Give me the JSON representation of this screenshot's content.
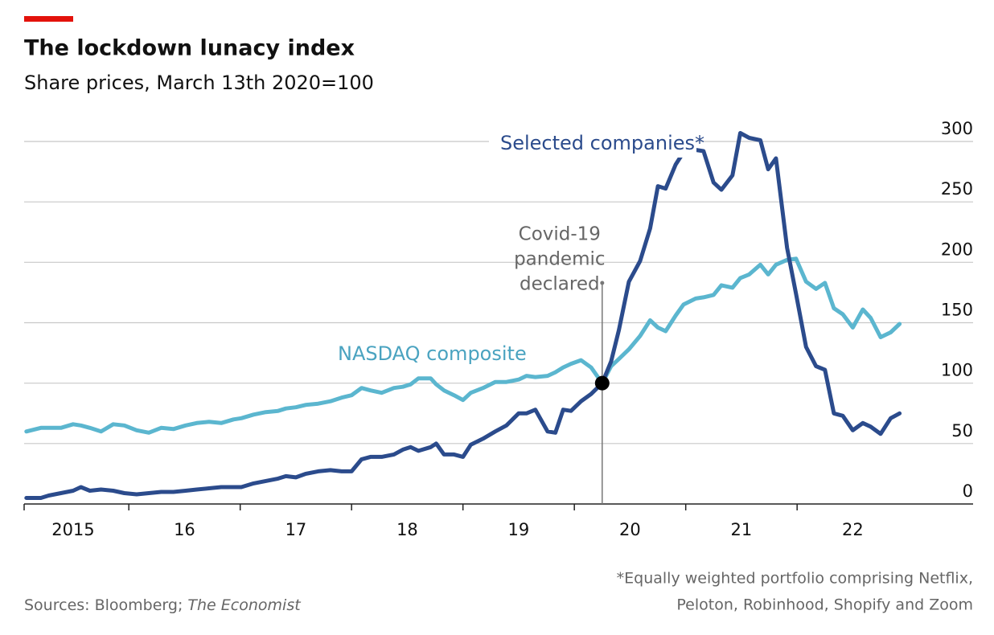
{
  "chart_data": {
    "type": "line",
    "title": "The lockdown lunacy index",
    "subtitle": "Share prices, March 13th 2020=100",
    "x": [
      2015.08,
      2015.21,
      2015.28,
      2015.39,
      2015.5,
      2015.57,
      2015.65,
      2015.75,
      2015.86,
      2015.96,
      2016.07,
      2016.18,
      2016.29,
      2016.4,
      2016.51,
      2016.61,
      2016.72,
      2016.83,
      2016.94,
      2017.01,
      2017.12,
      2017.23,
      2017.34,
      2017.41,
      2017.5,
      2017.59,
      2017.7,
      2017.81,
      2017.91,
      2018.0,
      2018.09,
      2018.17,
      2018.27,
      2018.38,
      2018.46,
      2018.53,
      2018.6,
      2018.71,
      2018.76,
      2018.83,
      2018.92,
      2019.0,
      2019.07,
      2019.18,
      2019.29,
      2019.39,
      2019.5,
      2019.57,
      2019.65,
      2019.76,
      2019.83,
      2019.9,
      2019.97,
      2020.06,
      2020.15,
      2020.25,
      2020.33,
      2020.4,
      2020.49,
      2020.59,
      2020.68,
      2020.75,
      2020.82,
      2020.91,
      2020.98,
      2021.09,
      2021.16,
      2021.25,
      2021.32,
      2021.42,
      2021.49,
      2021.57,
      2021.67,
      2021.74,
      2021.81,
      2021.91,
      2021.99,
      2022.08,
      2022.17,
      2022.25,
      2022.33,
      2022.41,
      2022.5,
      2022.59,
      2022.66,
      2022.75,
      2022.84,
      2022.92
    ],
    "series": [
      {
        "name": "Selected companies*",
        "color": "#2b4b8c",
        "values": [
          5,
          5,
          7,
          9,
          11,
          14,
          11,
          12,
          11,
          9,
          8,
          9,
          10,
          10,
          11,
          12,
          13,
          14,
          14,
          14,
          17,
          19,
          21,
          23,
          22,
          25,
          27,
          28,
          27,
          27,
          37,
          39,
          39,
          41,
          45,
          47,
          44,
          47,
          50,
          41,
          41,
          39,
          49,
          54,
          60,
          65,
          75,
          75,
          78,
          60,
          59,
          78,
          77,
          85,
          91,
          100,
          118,
          144,
          184,
          201,
          228,
          263,
          261,
          281,
          291,
          293,
          292,
          266,
          260,
          272,
          307,
          303,
          301,
          277,
          286,
          212,
          174,
          130,
          114,
          111,
          75,
          73,
          61,
          67,
          64,
          58,
          71,
          75
        ]
      },
      {
        "name": "NASDAQ composite",
        "color": "#5bb6cf",
        "values": [
          60,
          63,
          63,
          63,
          66,
          65,
          63,
          60,
          66,
          65,
          61,
          59,
          63,
          62,
          65,
          67,
          68,
          67,
          70,
          71,
          74,
          76,
          77,
          79,
          80,
          82,
          83,
          85,
          88,
          90,
          96,
          94,
          92,
          96,
          97,
          99,
          104,
          104,
          99,
          94,
          90,
          86,
          92,
          96,
          101,
          101,
          103,
          106,
          105,
          106,
          109,
          113,
          116,
          119,
          113,
          100,
          114,
          120,
          128,
          139,
          152,
          146,
          143,
          156,
          165,
          170,
          171,
          173,
          181,
          179,
          187,
          190,
          198,
          190,
          198,
          202,
          203,
          184,
          178,
          183,
          162,
          157,
          146,
          161,
          154,
          138,
          142,
          149
        ]
      }
    ],
    "xlim": [
      2015.06,
      2023.58
    ],
    "xticks": [
      2016,
      2017,
      2018,
      2019,
      2020,
      2021,
      2022
    ],
    "xticklabels": [
      {
        "value": 2015.5,
        "label": "2015"
      },
      {
        "value": 2016.5,
        "label": "16"
      },
      {
        "value": 2017.5,
        "label": "17"
      },
      {
        "value": 2018.5,
        "label": "18"
      },
      {
        "value": 2019.5,
        "label": "19"
      },
      {
        "value": 2020.5,
        "label": "20"
      },
      {
        "value": 2021.5,
        "label": "21"
      },
      {
        "value": 2022.5,
        "label": "22"
      }
    ],
    "ylim": [
      0,
      300
    ],
    "yticks": [
      0,
      50,
      100,
      150,
      200,
      250,
      300
    ],
    "grid": true,
    "annotation": {
      "lines": [
        "Covid-19",
        "pandemic",
        "declared"
      ],
      "x": 2020.25,
      "y": 100
    },
    "note": [
      "*Equally weighted portfolio comprising Netflix,",
      "Peloton, Robinhood, Shopify and Zoom"
    ],
    "source": [
      "Sources: Bloomberg; ",
      "The Economist"
    ]
  }
}
